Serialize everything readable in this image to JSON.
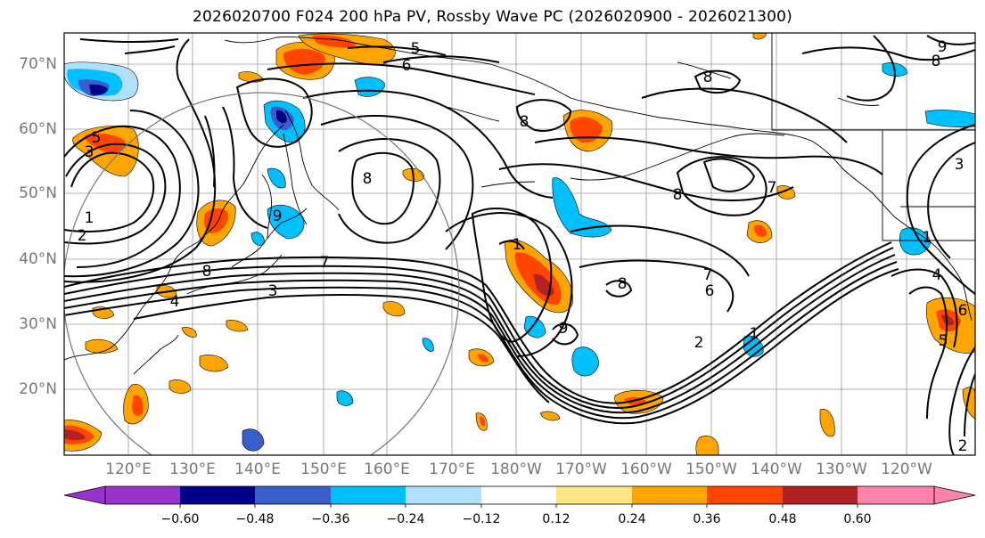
{
  "title": "2026020700 F024 200 hPa PV, Rossby Wave PC (2026020900 - 2026021300)",
  "lat_labels": [
    "70°N",
    "60°N",
    "50°N",
    "40°N",
    "30°N",
    "20°N"
  ],
  "lon_labels": [
    "120°E",
    "130°E",
    "140°E",
    "150°E",
    "160°E",
    "170°E",
    "180°W",
    "170°W",
    "160°W",
    "150°W",
    "140°W",
    "130°W",
    "120°W"
  ],
  "contour_labels": [
    "5",
    "6",
    "8",
    "8",
    "8",
    "5",
    "3",
    "1",
    "2",
    "8",
    "9",
    "7",
    "8",
    "3",
    "4",
    "9",
    "8",
    "7",
    "6",
    "2",
    "1",
    "3",
    "4",
    "1",
    "5",
    "6",
    "1",
    "2",
    "8",
    "9",
    "7"
  ],
  "colorbar": {
    "ticks": [
      "−0.60",
      "−0.48",
      "−0.36",
      "−0.24",
      "−0.12",
      "0.12",
      "0.24",
      "0.36",
      "0.48",
      "0.60"
    ],
    "colors": [
      "#9932cc",
      "#00008b",
      "#3a5fcd",
      "#00bfff",
      "#b0e0ff",
      "#ffffff",
      "#ffe680",
      "#ffa500",
      "#ff4500",
      "#b22222",
      "#ff82ab"
    ]
  }
}
